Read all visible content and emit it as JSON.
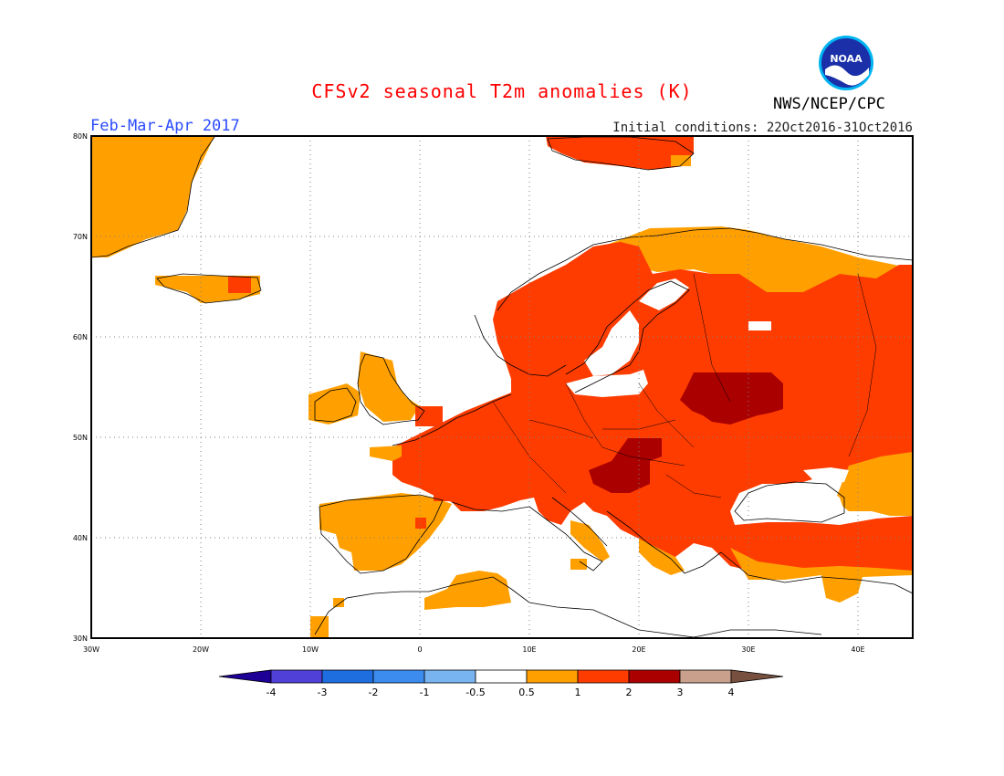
{
  "title": "CFSv2 seasonal T2m anomalies (K)",
  "season": "Feb-Mar-Apr 2017",
  "initial_conditions": "Initial conditions: 22Oct2016-31Oct2016",
  "agency": "NWS/NCEP/CPC",
  "logo_text": "NOAA",
  "lat_labels": [
    "80N",
    "70N",
    "60N",
    "50N",
    "40N",
    "30N"
  ],
  "lon_labels": [
    "30W",
    "20W",
    "10W",
    "0",
    "10E",
    "20E",
    "30E",
    "40E"
  ],
  "colorbar": {
    "labels": [
      "-4",
      "-3",
      "-2",
      "-1",
      "-0.5",
      "0.5",
      "1",
      "2",
      "3",
      "4"
    ],
    "colors": [
      "#1e0096",
      "#5040d8",
      "#1e6ee0",
      "#3c8cf0",
      "#78b4f0",
      "#ffffff",
      "#ffa000",
      "#ff3c00",
      "#aa0000",
      "#c8a08c",
      "#785040"
    ]
  },
  "anomaly_colors": {
    "0.5-1": "#ffa000",
    "1-2": "#ff3c00",
    "2-3": "#aa0000"
  }
}
